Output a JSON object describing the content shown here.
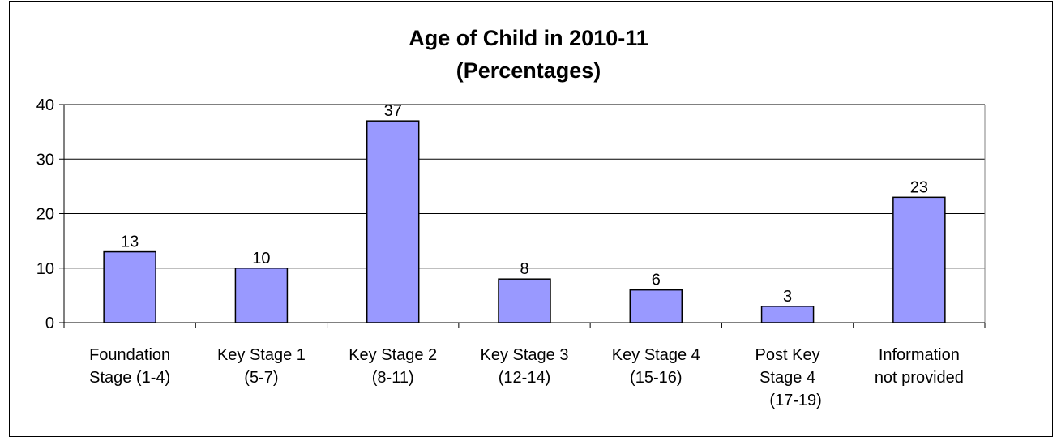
{
  "chart_data": {
    "type": "bar",
    "title": [
      "Age of Child in  2010-11",
      "(Percentages)"
    ],
    "xlabel": "",
    "ylabel": "",
    "categories": [
      [
        "Foundation",
        "Stage (1-4)"
      ],
      [
        "Key Stage 1",
        "(5-7)"
      ],
      [
        "Key Stage 2",
        "(8-11)"
      ],
      [
        "Key Stage 3",
        "(12-14)"
      ],
      [
        "Key Stage 4",
        "(15-16)"
      ],
      [
        "Post Key",
        "Stage 4",
        "(17-19)"
      ],
      [
        "Information",
        "not provided"
      ]
    ],
    "values": [
      13,
      10,
      37,
      8,
      6,
      3,
      23
    ],
    "ylim": [
      0,
      40
    ],
    "yticks": [
      0,
      10,
      20,
      30,
      40
    ],
    "grid": true,
    "legend": "none",
    "bar_color": "#9999ff",
    "bar_edge_color": "#000000"
  }
}
